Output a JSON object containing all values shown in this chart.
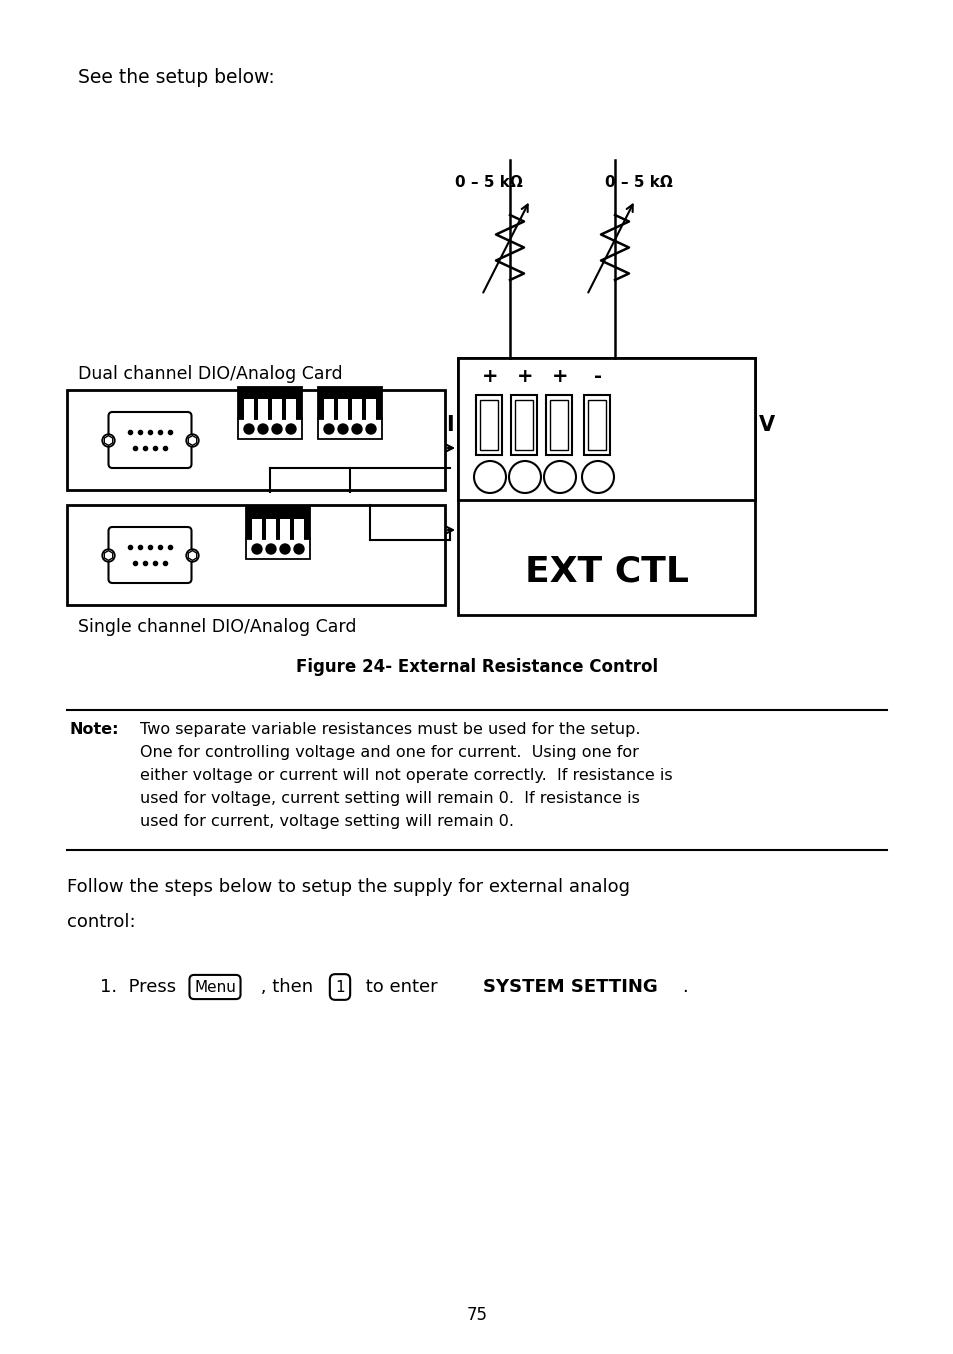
{
  "bg_color": "#ffffff",
  "text_color": "#000000",
  "page_number": "75",
  "top_text": "See the setup below:",
  "dual_channel_label": "Dual channel DIO/Analog Card",
  "single_channel_label": "Single channel DIO/Analog Card",
  "ext_ctl_label": "EXT CTL",
  "figure_caption": "Figure 24- External Resistance Control",
  "resistor1_label": "0 – 5 kΩ",
  "resistor2_label": "0 – 5 kΩ",
  "note_bold": "Note:",
  "follow_line1": "Follow the steps below to setup the supply for external analog",
  "follow_line2": "control:",
  "note_lines": [
    "Two separate variable resistances must be used for the setup.",
    "One for controlling voltage and one for current.  Using one for",
    "either voltage or current will not operate correctly.  If resistance is",
    "used for voltage, current setting will remain 0.  If resistance is",
    "used for current, voltage setting will remain 0."
  ]
}
